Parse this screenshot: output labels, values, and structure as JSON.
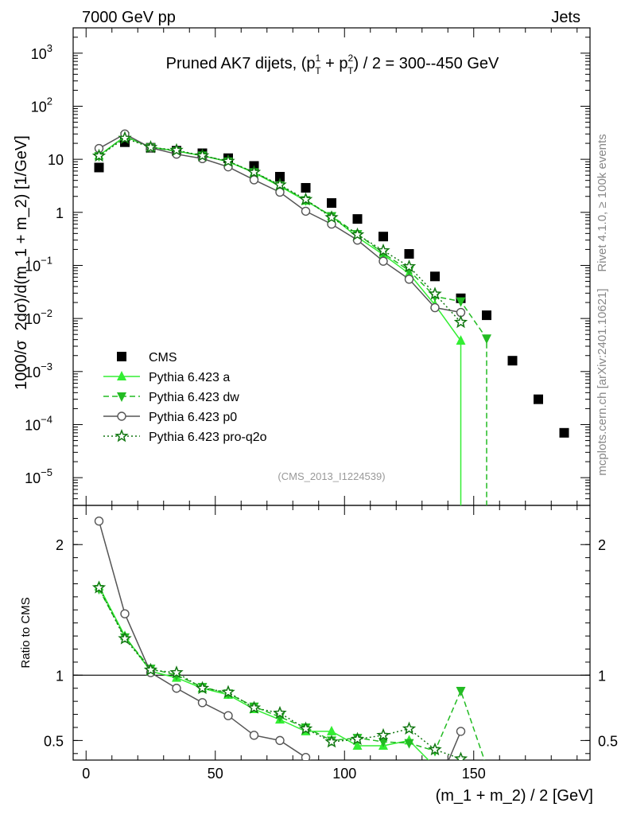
{
  "header": {
    "left": "7000 GeV pp",
    "right": "Jets"
  },
  "side_labels": {
    "rivet": "Rivet 4.1.0, ≥ 100k events",
    "site": "mcplots.cern.ch [arXiv:2401.10621]"
  },
  "chart_data": {
    "type": "scatter",
    "title_parts": {
      "pre": "Pruned AK7 dijets, (p",
      "sup1": "1",
      "sub1": "T",
      "mid": " + p",
      "sup2": "2",
      "sub2": "T",
      "post": ") / 2 = 300--450 GeV"
    },
    "analysis_tag": "(CMS_2013_I1224539)",
    "ylabel_parts": {
      "a": "1000/σ",
      "b": "2dσ)/d(m_1 + m_2) [1/GeV]"
    },
    "xlabel": "(m_1 + m_2) / 2 [GeV]",
    "ratio_ylabel": "Ratio to CMS",
    "xlim": [
      -5,
      195
    ],
    "ylim_log": [
      3e-06,
      3000
    ],
    "ratio_ylim": [
      0.35,
      2.3
    ],
    "x_ticks": [
      "0",
      "50",
      "100",
      "150"
    ],
    "x_tick_values": [
      0,
      50,
      100,
      150
    ],
    "y_ticks": [
      {
        "v": 1e-05,
        "base": "10",
        "exp": "−5"
      },
      {
        "v": 0.0001,
        "base": "10",
        "exp": "−4"
      },
      {
        "v": 0.001,
        "base": "10",
        "exp": "−3"
      },
      {
        "v": 0.01,
        "base": "10",
        "exp": "−2"
      },
      {
        "v": 0.1,
        "base": "10",
        "exp": "−1"
      },
      {
        "v": 1,
        "base": "1",
        "exp": ""
      },
      {
        "v": 10,
        "base": "10",
        "exp": ""
      },
      {
        "v": 100,
        "base": "10",
        "exp": "2"
      },
      {
        "v": 1000,
        "base": "10",
        "exp": "3"
      }
    ],
    "ratio_ticks": [
      "0.5",
      "1",
      "2"
    ],
    "ratio_tick_values": [
      0.5,
      1,
      2
    ],
    "series": [
      {
        "name": "CMS",
        "marker": "square",
        "color": "#000000",
        "line": "none",
        "x": [
          5,
          15,
          25,
          35,
          45,
          55,
          65,
          75,
          85,
          95,
          105,
          115,
          125,
          135,
          145,
          155,
          165,
          175,
          185
        ],
        "y": [
          7.0,
          21,
          16.5,
          14.5,
          13,
          10.5,
          7.5,
          4.7,
          2.9,
          1.5,
          0.75,
          0.35,
          0.165,
          0.062,
          0.024,
          0.0115,
          0.0016,
          0.0003,
          7e-05
        ],
        "ratio": null
      },
      {
        "name": "Pythia 6.423 a",
        "marker": "triangle-up",
        "color": "#33ee33",
        "line": "solid",
        "x": [
          5,
          15,
          25,
          35,
          45,
          55,
          65,
          75,
          85,
          95,
          105,
          115,
          125,
          135,
          145
        ],
        "y": [
          11.8,
          27,
          17,
          14.3,
          11.7,
          9.0,
          5.6,
          3.1,
          1.65,
          0.85,
          0.34,
          0.16,
          0.07,
          0.018,
          0.0038
        ],
        "ratio_x": [
          5,
          15,
          25,
          35,
          45,
          55,
          65,
          75,
          85,
          95,
          105,
          115,
          125,
          135,
          145
        ],
        "ratio": [
          1.68,
          1.3,
          1.03,
          0.98,
          0.9,
          0.85,
          0.74,
          0.66,
          0.57,
          0.57,
          0.46,
          0.46,
          0.5,
          0.3,
          0.0
        ],
        "drop_to_floor_after": 145
      },
      {
        "name": "Pythia 6.423 dw",
        "marker": "triangle-down",
        "color": "#22bb22",
        "line": "dashed",
        "x": [
          5,
          15,
          25,
          35,
          45,
          55,
          65,
          75,
          85,
          95,
          105,
          115,
          125,
          135,
          145,
          155
        ],
        "y": [
          11.5,
          27,
          16.8,
          14.2,
          11.8,
          9.1,
          5.7,
          3.2,
          1.7,
          0.85,
          0.39,
          0.17,
          0.08,
          0.026,
          0.021,
          0.0042
        ],
        "ratio_x": [
          5,
          15,
          25,
          35,
          45,
          55,
          65,
          75,
          85,
          95,
          105,
          115,
          125,
          135,
          145,
          155
        ],
        "ratio": [
          1.66,
          1.29,
          1.05,
          1.0,
          0.91,
          0.86,
          0.76,
          0.68,
          0.6,
          0.5,
          0.52,
          0.49,
          0.48,
          0.42,
          0.88,
          0.3
        ],
        "drop_to_floor_after": 155
      },
      {
        "name": "Pythia 6.423 p0",
        "marker": "circle-open",
        "color": "#555555",
        "line": "solid",
        "x": [
          5,
          15,
          25,
          35,
          45,
          55,
          65,
          75,
          85,
          95,
          105,
          115,
          125,
          135,
          145
        ],
        "y": [
          16,
          30,
          16.5,
          12.5,
          10.3,
          7.2,
          4.1,
          2.4,
          1.05,
          0.6,
          0.3,
          0.12,
          0.055,
          0.016,
          0.013
        ],
        "ratio_x": [
          5,
          15,
          25,
          35,
          45,
          55,
          65,
          75,
          85,
          95,
          105,
          115,
          125,
          135,
          145
        ],
        "ratio": [
          2.18,
          1.47,
          1.02,
          0.9,
          0.79,
          0.69,
          0.54,
          0.5,
          0.37,
          0.25,
          0.15,
          0.1,
          0.1,
          0.1,
          0.57
        ]
      },
      {
        "name": "Pythia 6.423 pro-q2o",
        "marker": "star-open",
        "color": "#117711",
        "line": "dotted",
        "x": [
          5,
          15,
          25,
          35,
          45,
          55,
          65,
          75,
          85,
          95,
          105,
          115,
          125,
          135,
          145
        ],
        "y": [
          11.6,
          25,
          16.8,
          14.8,
          11.7,
          9.2,
          5.7,
          3.3,
          1.75,
          0.8,
          0.38,
          0.19,
          0.095,
          0.029,
          0.0085
        ],
        "ratio_x": [
          5,
          15,
          25,
          35,
          45,
          55,
          65,
          75,
          85,
          95,
          105,
          115,
          125,
          135,
          145
        ],
        "ratio": [
          1.67,
          1.28,
          1.04,
          1.02,
          0.9,
          0.87,
          0.75,
          0.71,
          0.59,
          0.49,
          0.51,
          0.54,
          0.59,
          0.43,
          0.36
        ]
      }
    ]
  }
}
